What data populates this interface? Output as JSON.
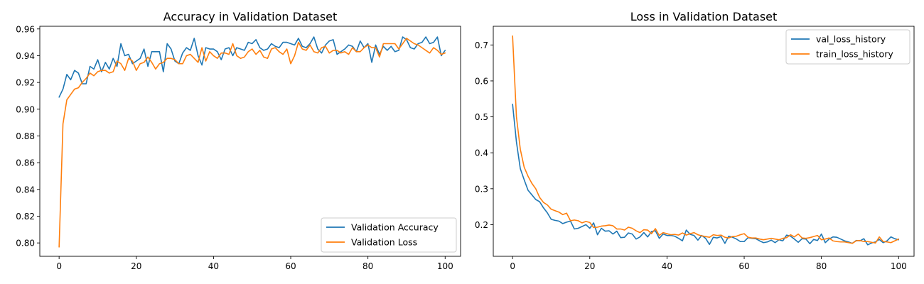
{
  "chart_data": [
    {
      "type": "line",
      "title": "Accuracy in Validation Dataset",
      "xlabel": "",
      "ylabel": "",
      "xlim": [
        -5,
        104
      ],
      "ylim": [
        0.79,
        0.962
      ],
      "x_ticks": [
        "0",
        "20",
        "40",
        "60",
        "80",
        "100"
      ],
      "y_ticks": [
        "0.80",
        "0.82",
        "0.84",
        "0.86",
        "0.88",
        "0.90",
        "0.92",
        "0.94",
        "0.96"
      ],
      "grid": false,
      "legend_position": "lower-right",
      "series": [
        {
          "name": "Validation Accuracy",
          "color": "#1f77b4",
          "values": [
            0.909,
            0.915,
            0.926,
            0.922,
            0.929,
            0.927,
            0.919,
            0.919,
            0.932,
            0.93,
            0.937,
            0.928,
            0.935,
            0.93,
            0.938,
            0.932,
            0.949,
            0.94,
            0.941,
            0.934,
            0.936,
            0.938,
            0.945,
            0.932,
            0.943,
            0.943,
            0.943,
            0.928,
            0.949,
            0.945,
            0.936,
            0.934,
            0.942,
            0.946,
            0.944,
            0.953,
            0.94,
            0.933,
            0.946,
            0.945,
            0.945,
            0.943,
            0.937,
            0.945,
            0.946,
            0.94,
            0.946,
            0.945,
            0.944,
            0.95,
            0.949,
            0.952,
            0.946,
            0.944,
            0.945,
            0.949,
            0.947,
            0.946,
            0.95,
            0.95,
            0.949,
            0.948,
            0.953,
            0.947,
            0.946,
            0.949,
            0.954,
            0.945,
            0.942,
            0.948,
            0.951,
            0.952,
            0.941,
            0.943,
            0.945,
            0.948,
            0.947,
            0.943,
            0.951,
            0.946,
            0.949,
            0.935,
            0.948,
            0.941,
            0.947,
            0.944,
            0.947,
            0.943,
            0.944,
            0.954,
            0.952,
            0.946,
            0.945,
            0.949,
            0.95,
            0.954,
            0.949,
            0.95,
            0.954,
            0.94,
            0.944
          ]
        },
        {
          "name": "Validation Loss",
          "color": "#ff7f0e",
          "values": [
            0.797,
            0.889,
            0.907,
            0.911,
            0.915,
            0.916,
            0.92,
            0.923,
            0.927,
            0.925,
            0.928,
            0.929,
            0.929,
            0.927,
            0.928,
            0.936,
            0.934,
            0.929,
            0.938,
            0.936,
            0.929,
            0.934,
            0.935,
            0.939,
            0.935,
            0.93,
            0.934,
            0.935,
            0.938,
            0.938,
            0.937,
            0.934,
            0.934,
            0.94,
            0.941,
            0.938,
            0.935,
            0.946,
            0.936,
            0.943,
            0.94,
            0.938,
            0.942,
            0.942,
            0.941,
            0.949,
            0.94,
            0.938,
            0.939,
            0.943,
            0.945,
            0.941,
            0.944,
            0.939,
            0.938,
            0.945,
            0.946,
            0.943,
            0.941,
            0.945,
            0.934,
            0.94,
            0.95,
            0.945,
            0.944,
            0.948,
            0.943,
            0.942,
            0.946,
            0.947,
            0.942,
            0.944,
            0.944,
            0.942,
            0.943,
            0.941,
            0.946,
            0.943,
            0.943,
            0.946,
            0.948,
            0.946,
            0.946,
            0.939,
            0.949,
            0.949,
            0.949,
            0.949,
            0.945,
            0.949,
            0.953,
            0.951,
            0.949,
            0.948,
            0.946,
            0.944,
            0.942,
            0.946,
            0.944,
            0.941,
            0.942
          ]
        }
      ]
    },
    {
      "type": "line",
      "title": "Loss in Validation Dataset",
      "xlabel": "",
      "ylabel": "",
      "xlim": [
        -5,
        104
      ],
      "ylim": [
        0.112,
        0.752
      ],
      "x_ticks": [
        "0",
        "20",
        "40",
        "60",
        "80",
        "100"
      ],
      "y_ticks": [
        "0.2",
        "0.3",
        "0.4",
        "0.5",
        "0.6",
        "0.7"
      ],
      "grid": false,
      "legend_position": "upper-right",
      "series": [
        {
          "name": "val_loss_history",
          "color": "#1f77b4",
          "values": [
            0.535,
            0.43,
            0.356,
            0.325,
            0.296,
            0.283,
            0.27,
            0.264,
            0.247,
            0.233,
            0.215,
            0.212,
            0.21,
            0.203,
            0.207,
            0.21,
            0.188,
            0.19,
            0.195,
            0.2,
            0.19,
            0.205,
            0.172,
            0.19,
            0.182,
            0.183,
            0.174,
            0.182,
            0.164,
            0.165,
            0.177,
            0.174,
            0.16,
            0.166,
            0.178,
            0.166,
            0.181,
            0.183,
            0.162,
            0.174,
            0.17,
            0.17,
            0.168,
            0.162,
            0.155,
            0.185,
            0.173,
            0.17,
            0.157,
            0.17,
            0.162,
            0.145,
            0.165,
            0.163,
            0.167,
            0.148,
            0.168,
            0.165,
            0.16,
            0.153,
            0.153,
            0.164,
            0.162,
            0.161,
            0.155,
            0.15,
            0.152,
            0.157,
            0.15,
            0.158,
            0.155,
            0.171,
            0.168,
            0.16,
            0.151,
            0.161,
            0.16,
            0.147,
            0.159,
            0.156,
            0.174,
            0.15,
            0.16,
            0.166,
            0.165,
            0.16,
            0.155,
            0.152,
            0.148,
            0.156,
            0.155,
            0.161,
            0.144,
            0.149,
            0.152,
            0.159,
            0.15,
            0.155,
            0.166,
            0.161,
            0.158
          ]
        },
        {
          "name": "train_loss_history",
          "color": "#ff7f0e",
          "values": [
            0.725,
            0.5,
            0.41,
            0.36,
            0.335,
            0.315,
            0.3,
            0.276,
            0.262,
            0.255,
            0.243,
            0.239,
            0.235,
            0.228,
            0.232,
            0.211,
            0.213,
            0.211,
            0.205,
            0.209,
            0.206,
            0.192,
            0.193,
            0.196,
            0.197,
            0.199,
            0.197,
            0.188,
            0.188,
            0.185,
            0.193,
            0.19,
            0.183,
            0.178,
            0.186,
            0.185,
            0.175,
            0.189,
            0.17,
            0.178,
            0.175,
            0.172,
            0.173,
            0.171,
            0.177,
            0.171,
            0.175,
            0.178,
            0.172,
            0.169,
            0.167,
            0.165,
            0.172,
            0.17,
            0.171,
            0.165,
            0.163,
            0.167,
            0.168,
            0.172,
            0.175,
            0.165,
            0.163,
            0.163,
            0.16,
            0.158,
            0.16,
            0.162,
            0.16,
            0.158,
            0.162,
            0.164,
            0.172,
            0.166,
            0.174,
            0.163,
            0.162,
            0.164,
            0.167,
            0.17,
            0.158,
            0.16,
            0.163,
            0.155,
            0.153,
            0.152,
            0.152,
            0.15,
            0.148,
            0.155,
            0.156,
            0.153,
            0.153,
            0.151,
            0.149,
            0.166,
            0.153,
            0.152,
            0.15,
            0.155,
            0.16
          ]
        }
      ]
    }
  ]
}
